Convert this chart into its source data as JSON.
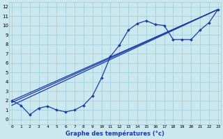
{
  "xlabel": "Graphe des températures (°c)",
  "bg_color": "#cce8ef",
  "grid_color": "#99ccd8",
  "line_color": "#1a3aaa",
  "x_data": [
    0,
    1,
    2,
    3,
    4,
    5,
    6,
    7,
    8,
    9,
    10,
    11,
    12,
    13,
    14,
    15,
    16,
    17,
    18,
    19,
    20,
    21,
    22,
    23
  ],
  "y_main": [
    2.0,
    1.5,
    0.5,
    1.2,
    1.4,
    1.0,
    0.8,
    1.0,
    1.5,
    2.5,
    4.4,
    6.7,
    7.9,
    9.5,
    10.2,
    10.5,
    10.1,
    10.0,
    8.5,
    8.5,
    8.5,
    9.5,
    10.3,
    11.7
  ],
  "lin_start_x": 0,
  "lin_start_y": 2.0,
  "lin_end_x": 23,
  "lin_end_y": 11.7,
  "lin2_end_y": 11.7,
  "lin3_end_y": 11.7,
  "lin2_start_y": 1.8,
  "lin3_start_y": 1.5,
  "xlim": [
    -0.3,
    23.3
  ],
  "ylim": [
    -0.5,
    12.5
  ],
  "xticks": [
    0,
    1,
    2,
    3,
    4,
    5,
    6,
    7,
    8,
    9,
    10,
    11,
    12,
    13,
    14,
    15,
    16,
    17,
    18,
    19,
    20,
    21,
    22,
    23
  ],
  "yticks": [
    0,
    1,
    2,
    3,
    4,
    5,
    6,
    7,
    8,
    9,
    10,
    11,
    12
  ]
}
